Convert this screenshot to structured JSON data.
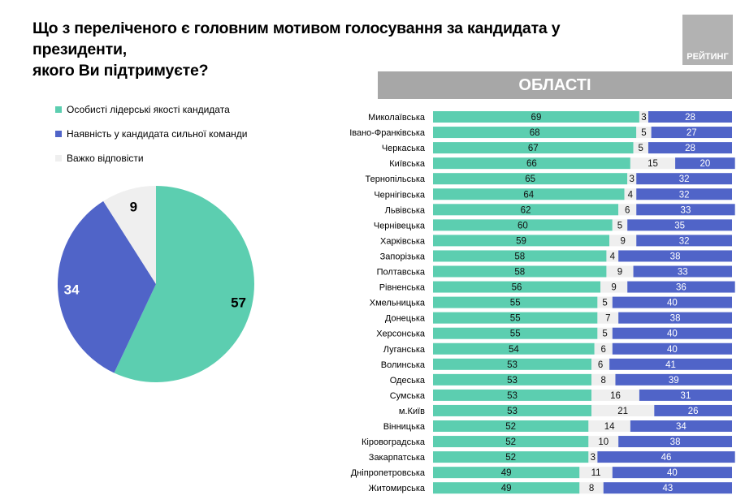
{
  "header": {
    "title_line1": "Що з переліченого є головним мотивом голосування за кандидата у президенти,",
    "title_line2": "якого Ви підтримуєте?",
    "brand": "РЕЙТИНГ"
  },
  "region_banner": "ОБЛАСТІ",
  "colors": {
    "leader": "#5cceb0",
    "team": "#5064c8",
    "hard": "#efefef",
    "banner": "#a7a7a7"
  },
  "chart_data": [
    {
      "type": "pie",
      "series": [
        {
          "name": "Особисті лідерські якості кандидата",
          "value": 57
        },
        {
          "name": "Наявність у кандидата сильної команди",
          "value": 34
        },
        {
          "name": "Важко відповісти",
          "value": 9
        }
      ],
      "legend": "top-left"
    },
    {
      "type": "bar",
      "orientation": "horizontal",
      "stacked": true,
      "title": "ОБЛАСТІ",
      "categories": [
        "Миколаївська",
        "Івано-Франківська",
        "Черкаська",
        "Київська",
        "Тернопільська",
        "Чернігівська",
        "Львівська",
        "Чернівецька",
        "Харківська",
        "Запорізька",
        "Полтавська",
        "Рівненська",
        "Хмельницька",
        "Донецька",
        "Херсонська",
        "Луганська",
        "Волинська",
        "Одеська",
        "Сумська",
        "м.Київ",
        "Вінницька",
        "Кіровоградська",
        "Закарпатська",
        "Дніпропетровська",
        "Житомирська"
      ],
      "series": [
        {
          "name": "Особисті лідерські якості кандидата",
          "values": [
            69,
            68,
            67,
            66,
            65,
            64,
            62,
            60,
            59,
            58,
            58,
            56,
            55,
            55,
            55,
            54,
            53,
            53,
            53,
            53,
            52,
            52,
            52,
            49,
            49
          ]
        },
        {
          "name": "Важко відповісти",
          "values": [
            3,
            5,
            5,
            15,
            3,
            4,
            6,
            5,
            9,
            4,
            9,
            9,
            5,
            7,
            5,
            6,
            6,
            8,
            16,
            21,
            14,
            10,
            3,
            11,
            8
          ]
        },
        {
          "name": "Наявність у кандидата сильної команди",
          "values": [
            28,
            27,
            28,
            20,
            32,
            32,
            33,
            35,
            32,
            38,
            33,
            36,
            40,
            38,
            40,
            40,
            41,
            39,
            31,
            26,
            34,
            38,
            46,
            40,
            43
          ]
        }
      ],
      "xlim": [
        0,
        100
      ]
    }
  ]
}
